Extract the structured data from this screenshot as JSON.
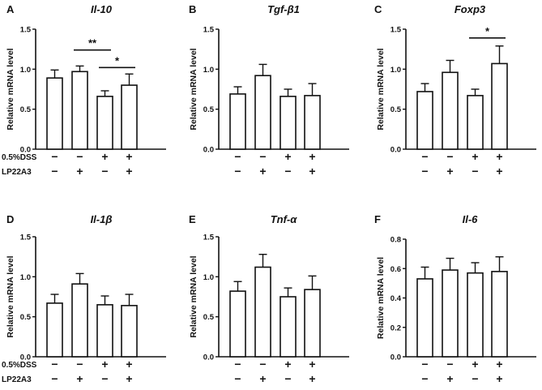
{
  "treatment_rows": [
    {
      "label": "0.5%DSS",
      "signs": [
        "−",
        "−",
        "+",
        "+"
      ]
    },
    {
      "label": "LP22A3",
      "signs": [
        "−",
        "+",
        "−",
        "+"
      ]
    }
  ],
  "chart_data": [
    {
      "letter": "A",
      "title": "Il-10",
      "type": "bar",
      "ylabel": "Relative mRNA level",
      "ylim": [
        0,
        1.5
      ],
      "yticks": [
        "0.0",
        "0.5",
        "1.0",
        "1.5"
      ],
      "values": [
        0.89,
        0.97,
        0.66,
        0.8
      ],
      "errors": [
        0.1,
        0.07,
        0.07,
        0.14
      ],
      "show_row_labels": true,
      "significance": [
        {
          "from": 1,
          "to": 2,
          "label": "**",
          "y": 1.24
        },
        {
          "from": 2,
          "to": 3,
          "label": "*",
          "y": 1.02
        }
      ]
    },
    {
      "letter": "B",
      "title": "Tgf-β1",
      "type": "bar",
      "ylabel": "Relative mRNA level",
      "ylim": [
        0,
        1.5
      ],
      "yticks": [
        "0.0",
        "0.5",
        "1.0",
        "1.5"
      ],
      "values": [
        0.69,
        0.92,
        0.66,
        0.67
      ],
      "errors": [
        0.09,
        0.14,
        0.09,
        0.15
      ],
      "show_row_labels": false,
      "significance": []
    },
    {
      "letter": "C",
      "title": "Foxp3",
      "type": "bar",
      "ylabel": "Relative mRNA level",
      "ylim": [
        0,
        1.5
      ],
      "yticks": [
        "0.0",
        "0.5",
        "1.0",
        "1.5"
      ],
      "values": [
        0.72,
        0.96,
        0.67,
        1.07
      ],
      "errors": [
        0.1,
        0.15,
        0.08,
        0.22
      ],
      "show_row_labels": false,
      "significance": [
        {
          "from": 2,
          "to": 3,
          "label": "*",
          "y": 1.39
        }
      ]
    },
    {
      "letter": "D",
      "title": "Il-1β",
      "type": "bar",
      "ylabel": "Relative mRNA level",
      "ylim": [
        0,
        1.5
      ],
      "yticks": [
        "0.0",
        "0.5",
        "1.0",
        "1.5"
      ],
      "values": [
        0.67,
        0.91,
        0.65,
        0.64
      ],
      "errors": [
        0.11,
        0.13,
        0.11,
        0.14
      ],
      "show_row_labels": true,
      "significance": []
    },
    {
      "letter": "E",
      "title": "Tnf-α",
      "type": "bar",
      "ylabel": "Relative mRNA level",
      "ylim": [
        0,
        1.5
      ],
      "yticks": [
        "0.0",
        "0.5",
        "1.0",
        "1.5"
      ],
      "values": [
        0.82,
        1.12,
        0.75,
        0.84
      ],
      "errors": [
        0.12,
        0.16,
        0.11,
        0.17
      ],
      "show_row_labels": false,
      "significance": []
    },
    {
      "letter": "F",
      "title": "Il-6",
      "type": "bar",
      "ylabel": "Relative mRNA level",
      "ylim": [
        0,
        0.8
      ],
      "yticks": [
        "0.0",
        "0.2",
        "0.4",
        "0.6",
        "0.8"
      ],
      "values": [
        0.53,
        0.59,
        0.57,
        0.58
      ],
      "errors": [
        0.08,
        0.08,
        0.07,
        0.1
      ],
      "show_row_labels": false,
      "significance": []
    }
  ]
}
